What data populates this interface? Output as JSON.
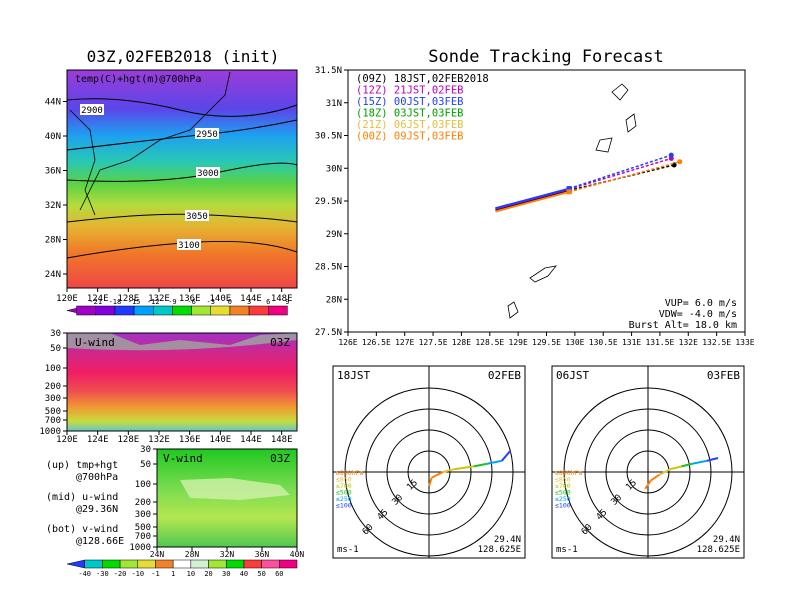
{
  "chart_data": [
    {
      "type": "heatmap",
      "title": "03Z,02FEB2018 (init)",
      "annotation": "temp(C)+hgt(m)@700hPa",
      "x_ticks": [
        "120E",
        "124E",
        "128E",
        "132E",
        "136E",
        "140E",
        "144E",
        "148E"
      ],
      "y_ticks": [
        "24N",
        "28N",
        "32N",
        "36N",
        "40N",
        "44N"
      ],
      "contour_labels": [
        "2900",
        "2950",
        "3000",
        "3050",
        "3100"
      ],
      "colorbar_ticks": [
        "-21",
        "-18",
        "-15",
        "-12",
        "-9",
        "-6",
        "-3",
        "0",
        "3",
        "6",
        "9"
      ],
      "colorbar_colors": [
        "#a000c8",
        "#8200dc",
        "#1e3cff",
        "#00a0ff",
        "#00c8c8",
        "#00dc00",
        "#a0e632",
        "#e6dc32",
        "#f08228",
        "#fa3c3c",
        "#f00082"
      ]
    },
    {
      "type": "line",
      "title": "Sonde Tracking Forecast",
      "x_ticks": [
        "126E",
        "126.5E",
        "127E",
        "127.5E",
        "128E",
        "128.5E",
        "129E",
        "129.5E",
        "130E",
        "130.5E",
        "131E",
        "131.5E",
        "132E",
        "132.5E",
        "133E"
      ],
      "y_ticks": [
        "27.5N",
        "28N",
        "28.5N",
        "29N",
        "29.5N",
        "30N",
        "30.5N",
        "31N",
        "31.5N"
      ],
      "xlim": [
        126,
        133
      ],
      "ylim": [
        27.5,
        31.5
      ],
      "legend": [
        {
          "label": "(09Z) 18JST,02FEB2018",
          "color": "#000000"
        },
        {
          "label": "(12Z) 21JST,02FEB",
          "color": "#c000c0"
        },
        {
          "label": "(15Z) 00JST,03FEB",
          "color": "#2040ff"
        },
        {
          "label": "(18Z) 03JST,03FEB",
          "color": "#00a000"
        },
        {
          "label": "(21Z) 06JST,03FEB",
          "color": "#e0c040"
        },
        {
          "label": "(00Z) 09JST,03FEB",
          "color": "#ff8000"
        }
      ],
      "series": [
        {
          "color": "#000000",
          "x": [
            128.6,
            129.9,
            131.75
          ],
          "y": [
            29.36,
            29.66,
            30.05
          ]
        },
        {
          "color": "#c000c0",
          "x": [
            128.6,
            129.9,
            131.7
          ],
          "y": [
            29.38,
            29.68,
            30.15
          ]
        },
        {
          "color": "#2040ff",
          "x": [
            128.6,
            129.9,
            131.7
          ],
          "y": [
            29.39,
            29.69,
            30.2
          ]
        },
        {
          "color": "#ff8000",
          "x": [
            128.6,
            129.9,
            131.85
          ],
          "y": [
            29.34,
            29.64,
            30.1
          ]
        }
      ],
      "info": [
        "VUP=  6.0 m/s",
        "VDW= -4.0 m/s",
        "Burst Alt= 18.0 km"
      ]
    },
    {
      "type": "heatmap",
      "label": "U-wind",
      "time": "03Z",
      "x_ticks": [
        "120E",
        "124E",
        "128E",
        "132E",
        "136E",
        "140E",
        "144E",
        "148E"
      ],
      "y_ticks": [
        "30",
        "50",
        "100",
        "200",
        "300",
        "500",
        "700",
        "1000"
      ]
    },
    {
      "type": "heatmap",
      "label": "V-wind",
      "time": "03Z",
      "x_ticks": [
        "24N",
        "28N",
        "32N",
        "36N",
        "40N"
      ],
      "y_ticks": [
        "30",
        "50",
        "100",
        "200",
        "300",
        "500",
        "700",
        "1000"
      ],
      "colorbar_ticks": [
        "-40",
        "-30",
        "-20",
        "-10",
        "-1",
        "1",
        "10",
        "20",
        "30",
        "40",
        "50",
        "60"
      ],
      "colorbar_colors": [
        "#00c8c8",
        "#00dc00",
        "#a0e632",
        "#e6dc32",
        "#f08228",
        "#ffffff",
        "#d2f0d2",
        "#a0e632",
        "#00dc00",
        "#fa3c3c",
        "#ff50a0",
        "#f00082"
      ]
    },
    {
      "type": "scatter",
      "label_left": "18JST",
      "label_right": "02FEB",
      "ring_labels": [
        "15",
        "30",
        "45",
        "60"
      ],
      "level_legend": [
        "≥850hPa",
        "≤850",
        "≤700",
        "≤500",
        "≤250",
        "≤100"
      ],
      "level_colors": [
        "#ff8000",
        "#e0c040",
        "#c8c800",
        "#20c020",
        "#00a0ff",
        "#2040ff"
      ],
      "units": "ms-1",
      "lat": "29.4N",
      "lon": "128.625E",
      "hodograph_u": [
        0,
        2,
        10,
        18,
        32,
        42,
        52,
        58
      ],
      "hodograph_v": [
        -10,
        -4,
        0,
        2,
        4,
        6,
        8,
        15
      ]
    },
    {
      "type": "scatter",
      "label_left": "06JST",
      "label_right": "03FEB",
      "ring_labels": [
        "15",
        "30",
        "45",
        "60"
      ],
      "level_legend": [
        "≥850hPa",
        "≤850",
        "≤700",
        "≤500",
        "≤250",
        "≤100"
      ],
      "level_colors": [
        "#ff8000",
        "#e0c040",
        "#c8c800",
        "#20c020",
        "#00a0ff",
        "#2040ff"
      ],
      "units": "ms-1",
      "lat": "29.4N",
      "lon": "128.625E",
      "hodograph_u": [
        -2,
        2,
        8,
        16,
        24,
        32,
        42,
        50
      ],
      "hodograph_v": [
        -12,
        -6,
        -2,
        2,
        4,
        6,
        8,
        10
      ]
    }
  ],
  "side_text": {
    "line1": "(up) tmp+hgt",
    "line2": "@700hPa",
    "line3": "(mid) u-wind",
    "line4": "@29.36N",
    "line5": "(bot) v-wind",
    "line6": "@128.66E"
  }
}
